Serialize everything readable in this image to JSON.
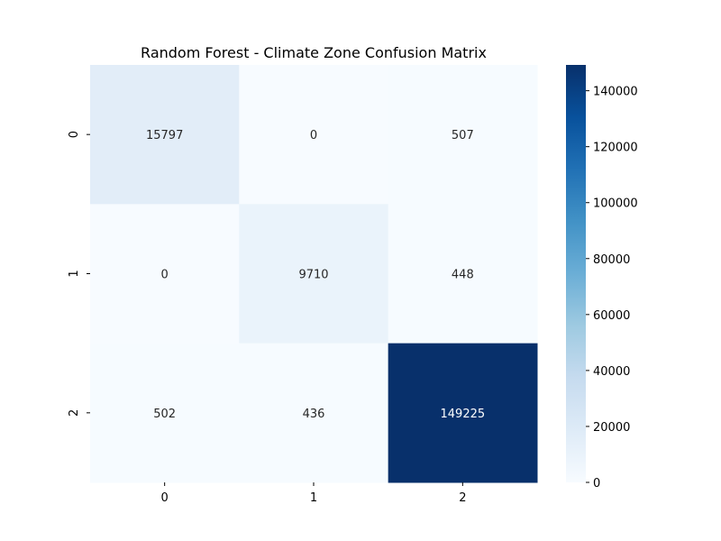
{
  "chart_data": {
    "type": "heatmap",
    "title": "Random Forest - Climate Zone Confusion Matrix",
    "xlabel": "",
    "ylabel": "",
    "x_tick_labels": [
      "0",
      "1",
      "2"
    ],
    "y_tick_labels": [
      "0",
      "1",
      "2"
    ],
    "matrix": [
      [
        15797,
        0,
        507
      ],
      [
        0,
        9710,
        448
      ],
      [
        502,
        436,
        149225
      ]
    ],
    "colormap": "Blues",
    "colormap_stops": [
      "#f7fbff",
      "#deebf7",
      "#c6dbef",
      "#9ecae1",
      "#6baed6",
      "#4292c6",
      "#2171b5",
      "#08519c",
      "#08306b"
    ],
    "colorbar": {
      "range": [
        0,
        149225
      ],
      "tick_values": [
        0,
        20000,
        40000,
        60000,
        80000,
        100000,
        120000,
        140000
      ],
      "tick_labels": [
        "0",
        "20000",
        "40000",
        "60000",
        "80000",
        "100000",
        "120000",
        "140000"
      ]
    },
    "annotation_dark_text_color": "#262626",
    "annotation_light_text_color": "#ffffff",
    "grid": false
  }
}
